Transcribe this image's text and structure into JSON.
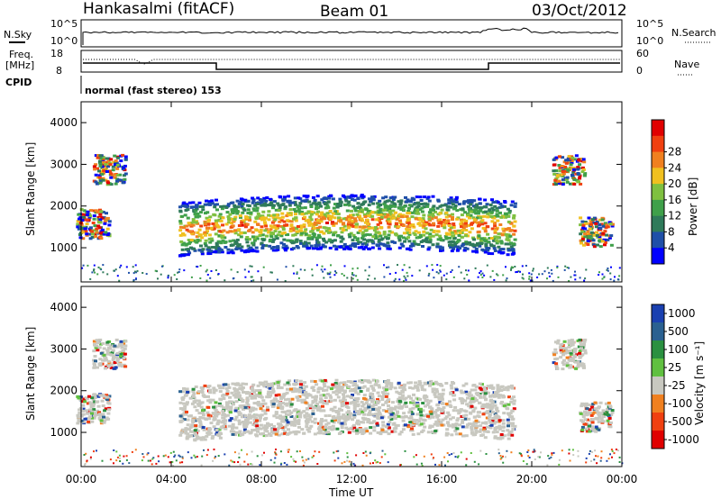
{
  "header": {
    "station": "Hankasalmi (fitACF)",
    "beam": "Beam 01",
    "date": "03/Oct/2012"
  },
  "top_panels": {
    "nsky_label": "N.Sky",
    "nsearch_label": "N.Search",
    "nsky_scale_top": "10^5",
    "nsky_scale_bottom": "10^0",
    "freq_label_line1": "Freq.",
    "freq_label_line2": "[MHz]",
    "freq_top": "18",
    "freq_bottom": "8",
    "nave_label": "Nave",
    "nave_top": "60",
    "nave_bottom": "0",
    "cpid_label": "CPID",
    "cpid_text": "normal (fast stereo) 153"
  },
  "colors": {
    "power": [
      "#0000ff",
      "#1f4fa8",
      "#2f7a5a",
      "#3fa04a",
      "#7fc040",
      "#f0c020",
      "#f08020",
      "#f04010",
      "#e00000"
    ],
    "velocity": [
      "#1a40b0",
      "#2a6090",
      "#2a9040",
      "#60c040",
      "#c8c8c0",
      "#f08020",
      "#f04010",
      "#e00000"
    ]
  },
  "chart_data": [
    {
      "type": "heatmap",
      "name": "Power",
      "title": "Hankasalmi (fitACF)",
      "xlabel": "Time UT",
      "ylabel": "Slant Range [km]",
      "xlim": [
        "00:00",
        "00:00"
      ],
      "x_ticks": [
        "00:00",
        "04:00",
        "08:00",
        "12:00",
        "16:00",
        "20:00",
        "00:00"
      ],
      "ylim": [
        180,
        4500
      ],
      "y_ticks": [
        1000,
        2000,
        3000,
        4000
      ],
      "colorbar": {
        "label": "Power [dB]",
        "ticks": [
          "4",
          "8",
          "12",
          "16",
          "20",
          "24",
          "28"
        ]
      }
    },
    {
      "type": "heatmap",
      "name": "Velocity",
      "xlabel": "Time UT",
      "ylabel": "Slant Range [km]",
      "xlim": [
        "00:00",
        "00:00"
      ],
      "x_ticks": [
        "00:00",
        "04:00",
        "08:00",
        "12:00",
        "16:00",
        "20:00",
        "00:00"
      ],
      "ylim": [
        180,
        4500
      ],
      "y_ticks": [
        1000,
        2000,
        3000,
        4000
      ],
      "colorbar": {
        "label": "Velocity [m s⁻¹]",
        "ticks": [
          "1000",
          "500",
          "100",
          "25",
          "-25",
          "-100",
          "-500",
          "-1000"
        ]
      }
    }
  ]
}
